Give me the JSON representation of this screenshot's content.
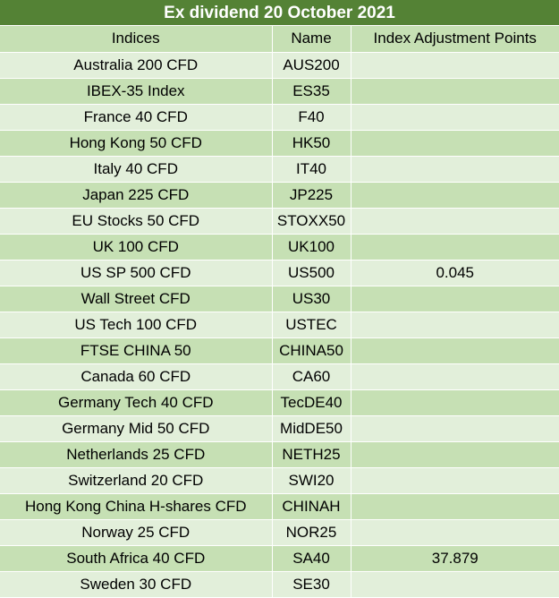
{
  "title": "Ex dividend 20 October 2021",
  "colors": {
    "title_bg": "#548235",
    "row_dark": "#c6e0b4",
    "row_light": "#e2efda",
    "grid_line": "#ffffff"
  },
  "headers": [
    "Indices",
    "Name",
    "Index Adjustment Points"
  ],
  "rows": [
    {
      "index": "Australia 200 CFD",
      "name": "AUS200",
      "points": ""
    },
    {
      "index": "IBEX-35 Index",
      "name": "ES35",
      "points": ""
    },
    {
      "index": "France 40 CFD",
      "name": "F40",
      "points": ""
    },
    {
      "index": "Hong Kong 50 CFD",
      "name": "HK50",
      "points": ""
    },
    {
      "index": "Italy 40 CFD",
      "name": "IT40",
      "points": ""
    },
    {
      "index": "Japan 225 CFD",
      "name": "JP225",
      "points": ""
    },
    {
      "index": "EU Stocks 50 CFD",
      "name": "STOXX50",
      "points": ""
    },
    {
      "index": "UK 100 CFD",
      "name": "UK100",
      "points": ""
    },
    {
      "index": "US SP 500 CFD",
      "name": "US500",
      "points": "0.045"
    },
    {
      "index": "Wall Street CFD",
      "name": "US30",
      "points": ""
    },
    {
      "index": "US Tech 100 CFD",
      "name": "USTEC",
      "points": ""
    },
    {
      "index": "FTSE CHINA 50",
      "name": "CHINA50",
      "points": ""
    },
    {
      "index": "Canada 60 CFD",
      "name": "CA60",
      "points": ""
    },
    {
      "index": "Germany Tech 40 CFD",
      "name": "TecDE40",
      "points": ""
    },
    {
      "index": "Germany Mid 50 CFD",
      "name": "MidDE50",
      "points": ""
    },
    {
      "index": "Netherlands 25 CFD",
      "name": "NETH25",
      "points": ""
    },
    {
      "index": "Switzerland 20 CFD",
      "name": "SWI20",
      "points": ""
    },
    {
      "index": "Hong Kong China H-shares CFD",
      "name": "CHINAH",
      "points": ""
    },
    {
      "index": "Norway 25 CFD",
      "name": "NOR25",
      "points": ""
    },
    {
      "index": "South Africa 40 CFD",
      "name": "SA40",
      "points": "37.879"
    },
    {
      "index": "Sweden 30 CFD",
      "name": "SE30",
      "points": ""
    }
  ]
}
